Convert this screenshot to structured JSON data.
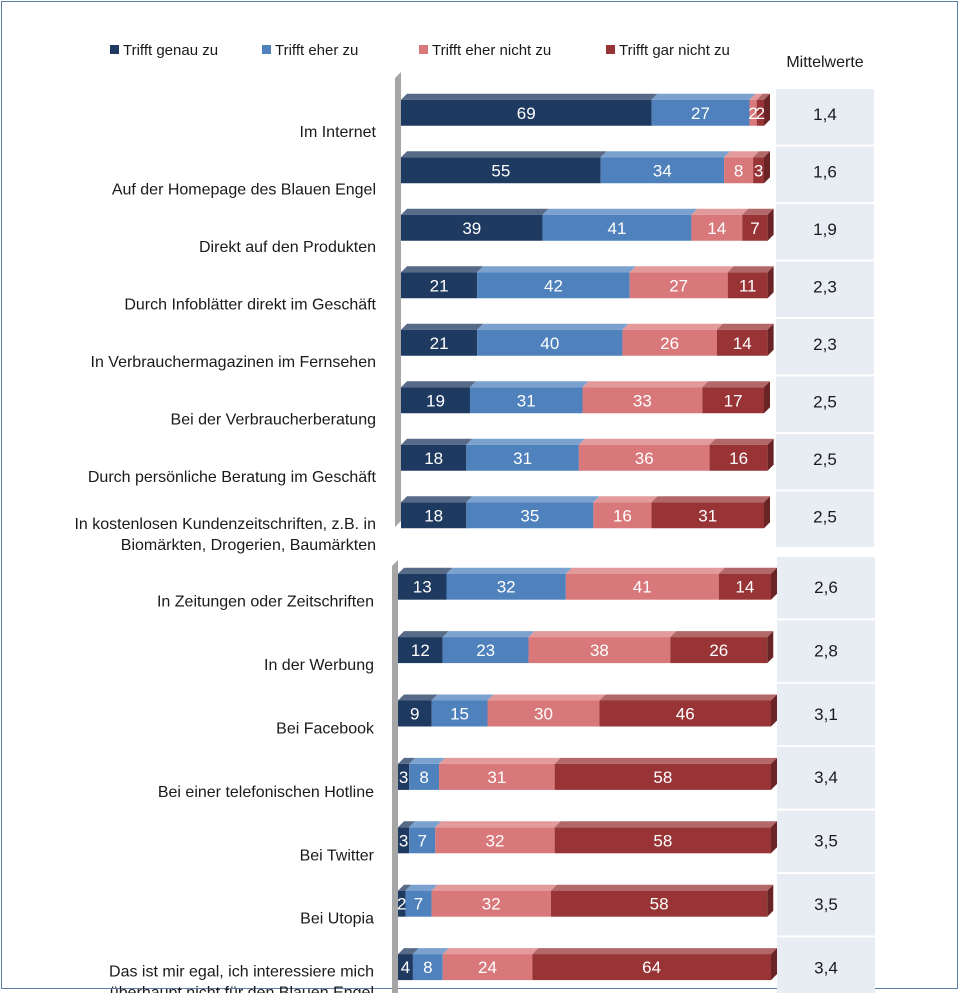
{
  "chart_data": {
    "type": "bar",
    "stacked": true,
    "orientation": "horizontal",
    "legend_position": "top",
    "series": [
      {
        "name": "Trifft genau zu",
        "color": "#1f3a60"
      },
      {
        "name": "Trifft eher zu",
        "color": "#4f81bd"
      },
      {
        "name": "Trifft eher nicht zu",
        "color": "#d9787a"
      },
      {
        "name": "Trifft gar nicht zu",
        "color": "#983436"
      }
    ],
    "mean_header": "Mittelwerte",
    "group1": [
      {
        "label": [
          "Im Internet"
        ],
        "values": [
          69,
          27,
          2,
          2
        ],
        "mean": "1,4"
      },
      {
        "label": [
          "Auf der Homepage des Blauen Engel"
        ],
        "values": [
          55,
          34,
          8,
          3
        ],
        "mean": "1,6"
      },
      {
        "label": [
          "Direkt auf den Produkten"
        ],
        "values": [
          39,
          41,
          14,
          7
        ],
        "mean": "1,9"
      },
      {
        "label": [
          "Durch Infoblätter direkt im Geschäft"
        ],
        "values": [
          21,
          42,
          27,
          11
        ],
        "mean": "2,3"
      },
      {
        "label": [
          "In Verbrauchermagazinen im Fernsehen"
        ],
        "values": [
          21,
          40,
          26,
          14
        ],
        "mean": "2,3"
      },
      {
        "label": [
          "Bei der Verbraucherberatung"
        ],
        "values": [
          19,
          31,
          33,
          17
        ],
        "mean": "2,5"
      },
      {
        "label": [
          "Durch persönliche Beratung im Geschäft"
        ],
        "values": [
          18,
          31,
          36,
          16
        ],
        "mean": "2,5"
      },
      {
        "label": [
          "In kostenlosen Kundenzeitschriften, z.B. in",
          "Biomärkten, Drogerien, Baumärkten"
        ],
        "values": [
          18,
          35,
          16,
          31
        ],
        "mean": "2,5"
      }
    ],
    "group2": [
      {
        "label": [
          "In Zeitungen oder Zeitschriften"
        ],
        "values": [
          13,
          32,
          41,
          14
        ],
        "mean": "2,6"
      },
      {
        "label": [
          "In der Werbung"
        ],
        "values": [
          12,
          23,
          38,
          26
        ],
        "mean": "2,8"
      },
      {
        "label": [
          "Bei Facebook"
        ],
        "values": [
          9,
          15,
          30,
          46
        ],
        "mean": "3,1"
      },
      {
        "label": [
          "Bei einer telefonischen Hotline"
        ],
        "values": [
          3,
          8,
          31,
          58
        ],
        "mean": "3,4"
      },
      {
        "label": [
          "Bei Twitter"
        ],
        "values": [
          3,
          7,
          32,
          58
        ],
        "mean": "3,5"
      },
      {
        "label": [
          "Bei Utopia"
        ],
        "values": [
          2,
          7,
          32,
          58
        ],
        "mean": "3,5"
      },
      {
        "label": [
          "Das ist mir egal, ich interessiere mich",
          "überhaupt nicht für den Blauen Engel"
        ],
        "values": [
          4,
          8,
          24,
          64
        ],
        "mean": "3,4"
      }
    ]
  }
}
